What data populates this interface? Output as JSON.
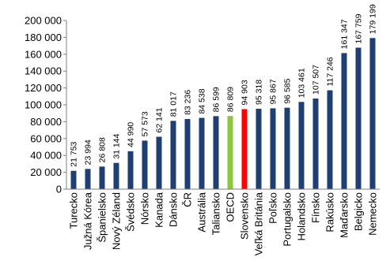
{
  "chart_data": {
    "type": "bar",
    "title": "",
    "xlabel": "",
    "ylabel": "",
    "ylim": [
      0,
      200000
    ],
    "yticks": [
      0,
      20000,
      40000,
      60000,
      80000,
      100000,
      120000,
      140000,
      160000,
      180000,
      200000
    ],
    "ytick_labels": [
      "0",
      "20 000",
      "40 000",
      "60 000",
      "80 000",
      "100 000",
      "120 000",
      "140 000",
      "160 000",
      "180 000",
      "200 000"
    ],
    "grid": false,
    "legend": "none",
    "categories": [
      "Turecko",
      "Južná Kórea",
      "Španielsko",
      "Nový Zéland",
      "Švédsko",
      "Nórsko",
      "Kanada",
      "Dánsko",
      "ČR",
      "Austrália",
      "Taliansko",
      "OECD",
      "Slovensko",
      "Veľká Británia",
      "Poľsko",
      "Portugalsko",
      "Holandsko",
      "Fínsko",
      "Rakúsko",
      "Maďarsko",
      "Belgicko",
      "Nemecko"
    ],
    "values": [
      21753,
      23994,
      26808,
      31144,
      44990,
      57573,
      62141,
      81017,
      83236,
      84538,
      86599,
      86809,
      94903,
      95318,
      95867,
      96585,
      103461,
      107507,
      117246,
      161347,
      167759,
      179199
    ],
    "value_labels": [
      "21 753",
      "23 994",
      "26 808",
      "31 144",
      "44 990",
      "57 573",
      "62 141",
      "81 017",
      "83 236",
      "84 538",
      "86 599",
      "86 809",
      "94 903",
      "95 318",
      "95 867",
      "96 585",
      "103 461",
      "107 507",
      "117 246",
      "161 347",
      "167 759",
      "179 199"
    ],
    "colors": {
      "default": "#1f3f73",
      "OECD": "#8cc63f",
      "Slovensko": "#ff0000",
      "axis": "#7f7f7f"
    }
  }
}
